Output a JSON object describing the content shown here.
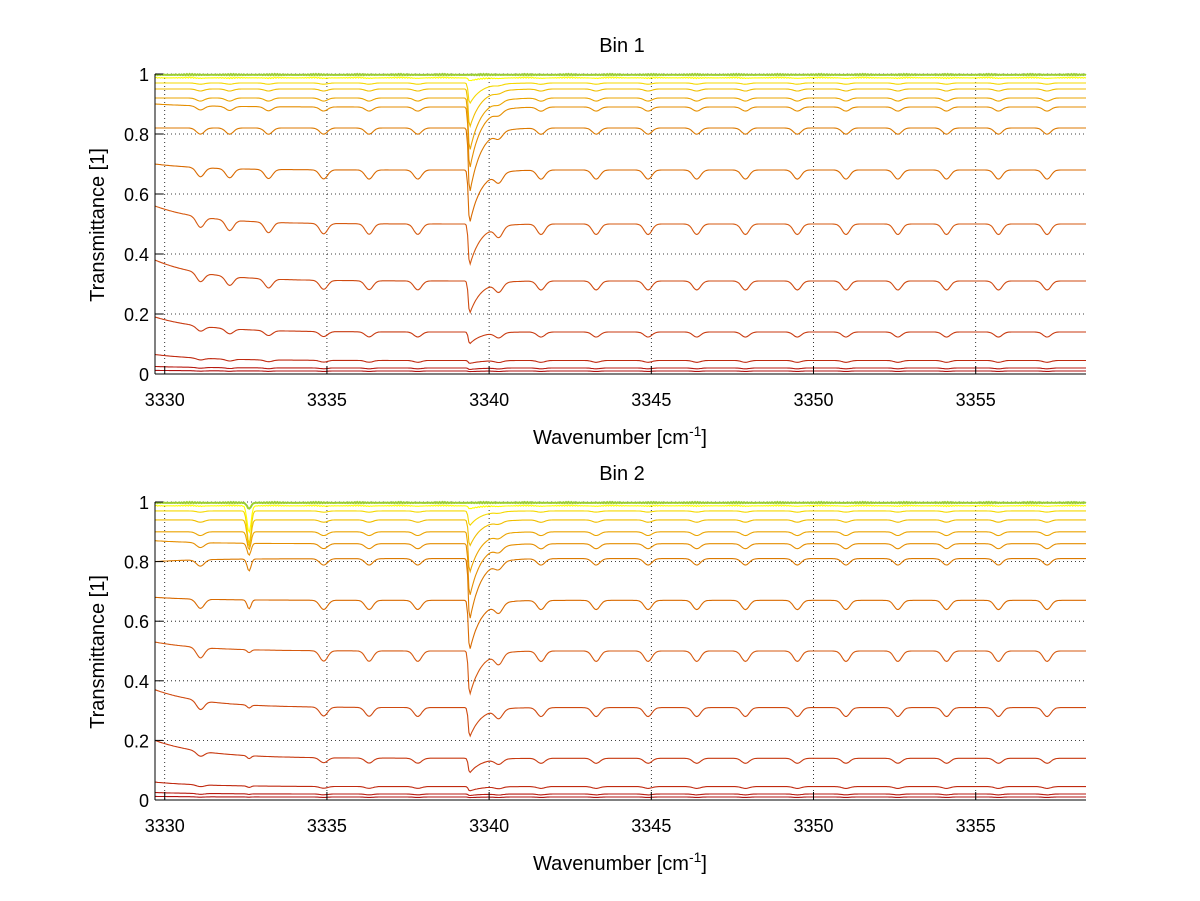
{
  "chart_data": [
    {
      "type": "line",
      "title": "Bin 1",
      "xlabel": "Wavenumber [cm",
      "xlabel_sup": "-1",
      "xlabel_end": "]",
      "ylabel": "Transmittance [1]",
      "xlim": [
        3329.7,
        3358.4
      ],
      "ylim": [
        0,
        1
      ],
      "xticks": [
        3330,
        3335,
        3340,
        3345,
        3350,
        3355
      ],
      "yticks": [
        0,
        0.2,
        0.4,
        0.6,
        0.8,
        1
      ],
      "grid": true,
      "legend": "none",
      "series_levels": [
        1.0,
        0.99,
        0.97,
        0.95,
        0.92,
        0.89,
        0.82,
        0.68,
        0.5,
        0.31,
        0.14,
        0.045,
        0.02,
        0.01
      ],
      "series_left_start": [
        1.0,
        0.99,
        0.97,
        0.95,
        0.92,
        0.9,
        0.82,
        0.7,
        0.56,
        0.38,
        0.19,
        0.065,
        0.025,
        0.012
      ],
      "series_colors": [
        "#9ACD32",
        "#FFFF00",
        "#F5D800",
        "#F0BE00",
        "#EBA400",
        "#E58E00",
        "#DC7A00",
        "#D96A00",
        "#D65A10",
        "#CF4A10",
        "#C83A10",
        "#C02A10",
        "#B81A10",
        "#B01010"
      ],
      "main_dip": {
        "x": 3339.4,
        "min_values": [
          1.0,
          0.98,
          0.9,
          0.82,
          0.74,
          0.68,
          0.6,
          0.5,
          0.36,
          0.2,
          0.1,
          0.035,
          0.015,
          0.008
        ]
      },
      "small_dips": [
        3331.1,
        3332.0,
        3333.2,
        3334.9,
        3336.3,
        3337.8,
        3340.3,
        3341.6,
        3343.3,
        3344.9,
        3346.4,
        3347.9,
        3349.5,
        3351.0,
        3352.6,
        3354.1,
        3355.7,
        3357.2
      ]
    },
    {
      "type": "line",
      "title": "Bin 2",
      "xlabel": "Wavenumber [cm",
      "xlabel_sup": "-1",
      "xlabel_end": "]",
      "ylabel": "Transmittance [1]",
      "xlim": [
        3329.7,
        3358.4
      ],
      "ylim": [
        0,
        1
      ],
      "xticks": [
        3330,
        3335,
        3340,
        3345,
        3350,
        3355
      ],
      "yticks": [
        0,
        0.2,
        0.4,
        0.6,
        0.8,
        1
      ],
      "grid": true,
      "legend": "none",
      "series_levels": [
        1.0,
        0.99,
        0.97,
        0.94,
        0.9,
        0.86,
        0.81,
        0.67,
        0.5,
        0.31,
        0.14,
        0.045,
        0.02,
        0.01
      ],
      "series_left_start": [
        1.0,
        0.99,
        0.97,
        0.94,
        0.9,
        0.87,
        0.8,
        0.68,
        0.53,
        0.37,
        0.2,
        0.06,
        0.025,
        0.012
      ],
      "series_colors": [
        "#9ACD32",
        "#FFFF00",
        "#F5D800",
        "#F0BE00",
        "#EBA400",
        "#E58E00",
        "#DC7A00",
        "#D96A00",
        "#D65A10",
        "#CF4A10",
        "#C83A10",
        "#C02A10",
        "#B81A10",
        "#B01010"
      ],
      "main_dip": {
        "x": 3339.4,
        "min_values": [
          1.0,
          0.98,
          0.92,
          0.85,
          0.76,
          0.68,
          0.6,
          0.5,
          0.35,
          0.21,
          0.09,
          0.03,
          0.015,
          0.008
        ]
      },
      "secondary_dip": {
        "x": 3332.6,
        "min_values": [
          0.98,
          0.9,
          0.86,
          0.85,
          0.84,
          0.82,
          0.77,
          0.64,
          0.49,
          0.3,
          0.13,
          0.04,
          0.018,
          0.009
        ]
      },
      "small_dips": [
        3331.1,
        3334.9,
        3336.3,
        3337.8,
        3340.3,
        3341.6,
        3343.3,
        3344.9,
        3346.4,
        3347.9,
        3349.5,
        3351.0,
        3352.6,
        3354.1,
        3355.7,
        3357.2
      ]
    }
  ]
}
